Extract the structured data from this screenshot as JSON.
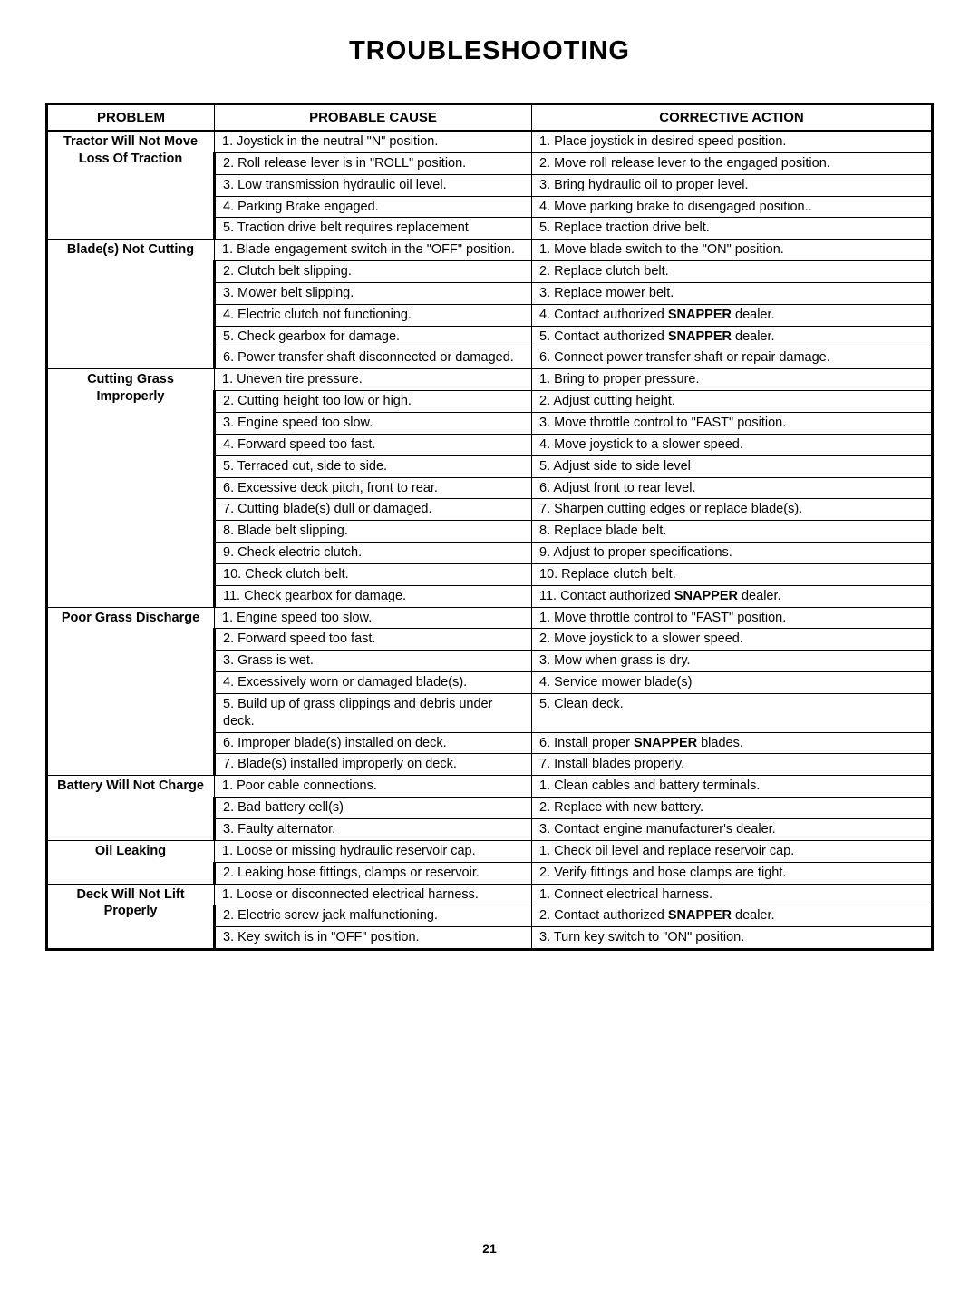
{
  "title": "TROUBLESHOOTING",
  "pageNumber": "21",
  "headers": {
    "problem": "PROBLEM",
    "cause": "PROBABLE CAUSE",
    "action": "CORRECTIVE ACTION"
  },
  "boldWord": "SNAPPER",
  "sections": [
    {
      "problem": [
        "Tractor Will Not Move",
        "Loss Of Traction"
      ],
      "rows": [
        {
          "cause": "1. Joystick in the neutral \"N\" position.",
          "action": "1. Place joystick in desired speed position."
        },
        {
          "cause": "2. Roll release lever is in \"ROLL\" position.",
          "action": "2. Move roll release lever to the engaged position."
        },
        {
          "cause": "3. Low transmission hydraulic oil level.",
          "action": "3. Bring hydraulic oil to proper level."
        },
        {
          "cause": "4. Parking Brake engaged.",
          "action": "4. Move parking brake to disengaged position.."
        },
        {
          "cause": "5. Traction drive belt requires replacement",
          "action": "5. Replace traction drive belt."
        }
      ]
    },
    {
      "problem": [
        "Blade(s) Not Cutting"
      ],
      "rows": [
        {
          "cause": "1. Blade engagement switch in the \"OFF\" position.",
          "action": "1. Move blade switch to the \"ON\" position."
        },
        {
          "cause": "2. Clutch belt slipping.",
          "action": "2. Replace clutch belt."
        },
        {
          "cause": "3. Mower belt slipping.",
          "action": "3. Replace mower belt."
        },
        {
          "cause": "4. Electric clutch not functioning.",
          "action": "4. Contact authorized |SNAPPER| dealer."
        },
        {
          "cause": "5. Check gearbox for damage.",
          "action": "5. Contact authorized |SNAPPER| dealer."
        },
        {
          "cause": "6. Power transfer shaft disconnected or damaged.",
          "action": "6. Connect power transfer shaft or repair damage."
        }
      ]
    },
    {
      "problem": [
        "Cutting Grass",
        "Improperly"
      ],
      "rows": [
        {
          "cause": "1. Uneven tire pressure.",
          "action": "1. Bring to proper pressure."
        },
        {
          "cause": "2. Cutting height too low or high.",
          "action": "2. Adjust cutting height."
        },
        {
          "cause": "3. Engine speed too slow.",
          "action": "3. Move throttle control to \"FAST\" position."
        },
        {
          "cause": "4. Forward speed too fast.",
          "action": "4. Move joystick to a slower speed."
        },
        {
          "cause": "5. Terraced cut, side to side.",
          "action": "5. Adjust side to side level"
        },
        {
          "cause": "6. Excessive deck pitch, front to rear.",
          "action": "6. Adjust front to rear level."
        },
        {
          "cause": "7. Cutting blade(s) dull or damaged.",
          "action": "7. Sharpen cutting edges or replace blade(s)."
        },
        {
          "cause": "8. Blade belt slipping.",
          "action": "8. Replace blade belt."
        },
        {
          "cause": "9. Check electric clutch.",
          "action": "9. Adjust to proper specifications."
        },
        {
          "cause": "10. Check clutch belt.",
          "action": "10. Replace clutch belt."
        },
        {
          "cause": "11. Check gearbox for damage.",
          "action": "11. Contact authorized |SNAPPER| dealer."
        }
      ]
    },
    {
      "problem": [
        "Poor Grass Discharge"
      ],
      "rows": [
        {
          "cause": "1. Engine speed too slow.",
          "action": "1. Move throttle control to \"FAST\" position."
        },
        {
          "cause": "2. Forward speed too fast.",
          "action": "2. Move joystick to a slower speed."
        },
        {
          "cause": "3. Grass is wet.",
          "action": "3. Mow when grass is dry."
        },
        {
          "cause": "4. Excessively worn or damaged blade(s).",
          "action": "4. Service mower blade(s)"
        },
        {
          "cause": "5. Build up of grass clippings and debris under deck.",
          "action": "5. Clean deck."
        },
        {
          "cause": "6. Improper blade(s) installed on deck.",
          "action": "6. Install proper |SNAPPER| blades."
        },
        {
          "cause": "7. Blade(s) installed improperly on deck.",
          "action": "7. Install blades properly."
        }
      ]
    },
    {
      "problem": [
        "Battery Will Not Charge"
      ],
      "rows": [
        {
          "cause": "1. Poor cable connections.",
          "action": "1. Clean cables and battery terminals."
        },
        {
          "cause": "2. Bad battery cell(s)",
          "action": "2. Replace with new battery."
        },
        {
          "cause": "3. Faulty alternator.",
          "action": "3. Contact engine manufacturer's dealer."
        }
      ]
    },
    {
      "problem": [
        "Oil Leaking"
      ],
      "rows": [
        {
          "cause": "1. Loose or missing hydraulic reservoir cap.",
          "action": "1. Check oil level and replace reservoir cap."
        },
        {
          "cause": "2. Leaking hose fittings, clamps or reservoir.",
          "action": "2. Verify fittings and hose clamps are tight."
        }
      ]
    },
    {
      "problem": [
        "Deck Will Not Lift",
        "Properly"
      ],
      "rows": [
        {
          "cause": "1. Loose or disconnected electrical harness.",
          "action": "1. Connect electrical harness."
        },
        {
          "cause": "2. Electric screw jack malfunctioning.",
          "action": "2. Contact authorized |SNAPPER| dealer."
        },
        {
          "cause": "3. Key switch is in \"OFF\" position.",
          "action": "3. Turn key switch to \"ON\" position."
        }
      ]
    }
  ]
}
